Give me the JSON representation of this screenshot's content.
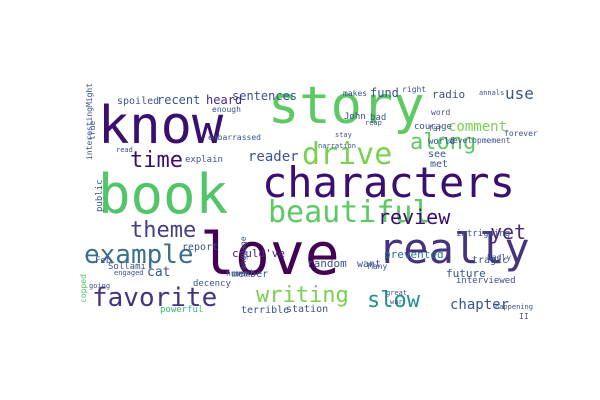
{
  "words": [
    {
      "text": "love",
      "color": "#440154",
      "vertical": false
    },
    {
      "text": "book",
      "color": "#52c569",
      "vertical": false
    },
    {
      "text": "story",
      "color": "#5ec962",
      "vertical": false
    },
    {
      "text": "know",
      "color": "#3b0f70",
      "vertical": false
    },
    {
      "text": "characters",
      "color": "#3b0f70",
      "vertical": false
    },
    {
      "text": "really",
      "color": "#46337e",
      "vertical": false
    },
    {
      "text": "beautiful",
      "color": "#5ec962",
      "vertical": false
    },
    {
      "text": "drive",
      "color": "#7ad151",
      "vertical": false
    },
    {
      "text": "example",
      "color": "#3e6f8a",
      "vertical": false
    },
    {
      "text": "favorite",
      "color": "#46337e",
      "vertical": false
    },
    {
      "text": "time",
      "color": "#3b0f70",
      "vertical": false
    },
    {
      "text": "theme",
      "color": "#433e85",
      "vertical": false
    },
    {
      "text": "writing",
      "color": "#7ad151",
      "vertical": false
    },
    {
      "text": "slow",
      "color": "#21918c",
      "vertical": false
    },
    {
      "text": "review",
      "color": "#3b0f70",
      "vertical": false
    },
    {
      "text": "along",
      "color": "#5ec962",
      "vertical": false
    },
    {
      "text": "yet",
      "color": "#482878",
      "vertical": false
    },
    {
      "text": "chapter",
      "color": "#3b528b",
      "vertical": false
    },
    {
      "text": "comment",
      "color": "#7ad151",
      "vertical": false
    },
    {
      "text": "use",
      "color": "#3b528b",
      "vertical": false
    },
    {
      "text": "reader",
      "color": "#3b528b",
      "vertical": false
    },
    {
      "text": "cat",
      "color": "#3b528b",
      "vertical": false
    },
    {
      "text": "sentences",
      "color": "#3b528b",
      "vertical": false
    },
    {
      "text": "heard",
      "color": "#482878",
      "vertical": false
    },
    {
      "text": "recent",
      "color": "#3b528b",
      "vertical": false
    },
    {
      "text": "spoiled",
      "color": "#3b528b",
      "vertical": false
    },
    {
      "text": "fund",
      "color": "#3b528b",
      "vertical": false
    },
    {
      "text": "radio",
      "color": "#3b528b",
      "vertical": false
    },
    {
      "text": "future",
      "color": "#3b528b",
      "vertical": false
    },
    {
      "text": "random",
      "color": "#3b528b",
      "vertical": false
    },
    {
      "text": "could've",
      "color": "#482878",
      "vertical": false
    },
    {
      "text": "report",
      "color": "#3b528b",
      "vertical": false
    },
    {
      "text": "member",
      "color": "#3b528b",
      "vertical": false
    },
    {
      "text": "want",
      "color": "#3b528b",
      "vertical": false
    },
    {
      "text": "prevented",
      "color": "#2c728e",
      "vertical": false
    },
    {
      "text": "station",
      "color": "#3b528b",
      "vertical": false
    },
    {
      "text": "terrible",
      "color": "#3b528b",
      "vertical": false
    },
    {
      "text": "powerful",
      "color": "#35b779",
      "vertical": false
    },
    {
      "text": "decency",
      "color": "#3b528b",
      "vertical": false
    },
    {
      "text": "Sollami",
      "color": "#3b528b",
      "vertical": false
    },
    {
      "text": "Feb",
      "color": "#3b528b",
      "vertical": false
    },
    {
      "text": "public",
      "color": "#3b528b",
      "vertical": true
    },
    {
      "text": "explain",
      "color": "#3b528b",
      "vertical": false
    },
    {
      "text": "tragic",
      "color": "#3b528b",
      "vertical": false
    },
    {
      "text": "intriguing",
      "color": "#3b528b",
      "vertical": false
    },
    {
      "text": "interviewed",
      "color": "#3b528b",
      "vertical": false
    },
    {
      "text": "met",
      "color": "#3b528b",
      "vertical": false
    },
    {
      "text": "see",
      "color": "#3b528b",
      "vertical": false
    },
    {
      "text": "John",
      "color": "#3b528b",
      "vertical": false
    },
    {
      "text": "bad",
      "color": "#3b528b",
      "vertical": false
    },
    {
      "text": "world",
      "color": "#3b528b",
      "vertical": false
    },
    {
      "text": "courage",
      "color": "#3b528b",
      "vertical": false
    },
    {
      "text": "developmement",
      "color": "#3b528b",
      "vertical": false
    },
    {
      "text": "forever",
      "color": "#3b528b",
      "vertical": false
    },
    {
      "text": "makes",
      "color": "#3b528b",
      "vertical": false
    },
    {
      "text": "enough",
      "color": "#3b528b",
      "vertical": false
    },
    {
      "text": "human",
      "color": "#3b528b",
      "vertical": false
    },
    {
      "text": "embarrassed",
      "color": "#3b528b",
      "vertical": false
    },
    {
      "text": "interestingMight",
      "color": "#3b528b",
      "vertical": true
    },
    {
      "text": "copped",
      "color": "#52c569",
      "vertical": true
    },
    {
      "text": "true",
      "color": "#3b528b",
      "vertical": true
    },
    {
      "text": "Many",
      "color": "#3b528b",
      "vertical": false
    },
    {
      "text": "II",
      "color": "#3b528b",
      "vertical": false
    },
    {
      "text": "word",
      "color": "#3b528b",
      "vertical": false
    },
    {
      "text": "badly",
      "color": "#3b528b",
      "vertical": false
    },
    {
      "text": "far",
      "color": "#3b528b",
      "vertical": false
    },
    {
      "text": "right",
      "color": "#3b528b",
      "vertical": false
    },
    {
      "text": "language",
      "color": "#3b528b",
      "vertical": true
    },
    {
      "text": "annals",
      "color": "#3b528b",
      "vertical": false
    },
    {
      "text": "great",
      "color": "#3b528b",
      "vertical": false
    },
    {
      "text": "reap",
      "color": "#3b528b",
      "vertical": false
    },
    {
      "text": "going",
      "color": "#3b528b",
      "vertical": false
    },
    {
      "text": "engaged",
      "color": "#3b528b",
      "vertical": false
    },
    {
      "text": "war",
      "color": "#3b528b",
      "vertical": false
    },
    {
      "text": "read",
      "color": "#3b528b",
      "vertical": false
    },
    {
      "text": "stay",
      "color": "#3b528b",
      "vertical": false
    },
    {
      "text": "narration",
      "color": "#3b528b",
      "vertical": false
    },
    {
      "text": "happening",
      "color": "#3b528b",
      "vertical": false
    }
  ]
}
